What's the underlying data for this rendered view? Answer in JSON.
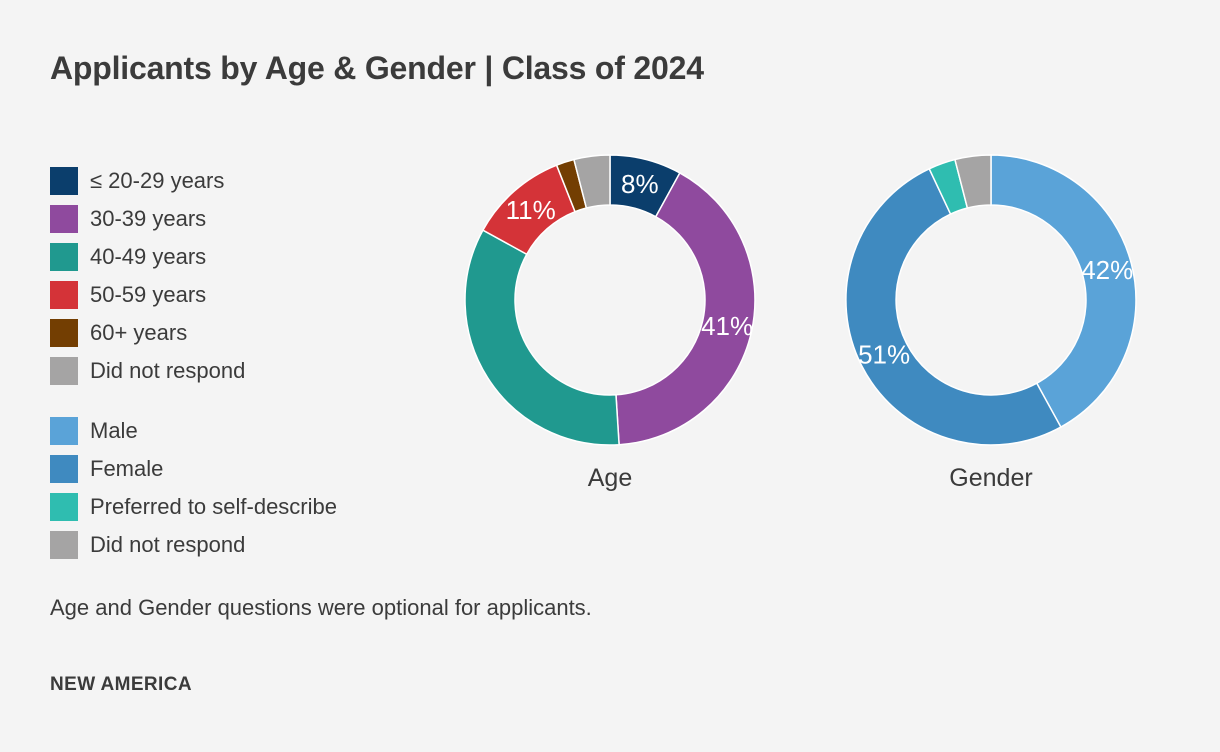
{
  "title": "Applicants by Age & Gender | Class of 2024",
  "footnote": "Age and Gender questions were optional for applicants.",
  "brand": "NEW AMERICA",
  "colors": {
    "background": "#f4f4f4",
    "text": "#3b3b3b",
    "data_label_text": "#ffffff",
    "slice_divider": "#ffffff"
  },
  "chart_data": [
    {
      "type": "pie",
      "subtype": "donut",
      "title": "Age",
      "start_angle": "top",
      "direction": "clockwise",
      "inner_radius_ratio": 0.655,
      "legend_position": "left",
      "slices": [
        {
          "label": "≤ 20-29 years",
          "value": 8,
          "color": "#0b3e6c",
          "data_label": "8%"
        },
        {
          "label": "30-39 years",
          "value": 41,
          "color": "#8f4a9e",
          "data_label": "41%"
        },
        {
          "label": "40-49 years",
          "value": 34,
          "color": "#20998f",
          "data_label": ""
        },
        {
          "label": "50-59 years",
          "value": 11,
          "color": "#d43338",
          "data_label": "11%"
        },
        {
          "label": "60+ years",
          "value": 2,
          "color": "#733e02",
          "data_label": ""
        },
        {
          "label": "Did not respond",
          "value": 4,
          "color": "#a5a4a4",
          "data_label": ""
        }
      ]
    },
    {
      "type": "pie",
      "subtype": "donut",
      "title": "Gender",
      "start_angle": "top",
      "direction": "clockwise",
      "inner_radius_ratio": 0.655,
      "legend_position": "left",
      "slices": [
        {
          "label": "Male",
          "value": 42,
          "color": "#5aa3d8",
          "data_label": "42%"
        },
        {
          "label": "Female",
          "value": 51,
          "color": "#3f8ac0",
          "data_label": "51%"
        },
        {
          "label": "Preferred to self-describe",
          "value": 3,
          "color": "#2fbdb0",
          "data_label": ""
        },
        {
          "label": "Did not respond",
          "value": 4,
          "color": "#a5a4a4",
          "data_label": ""
        }
      ]
    }
  ]
}
